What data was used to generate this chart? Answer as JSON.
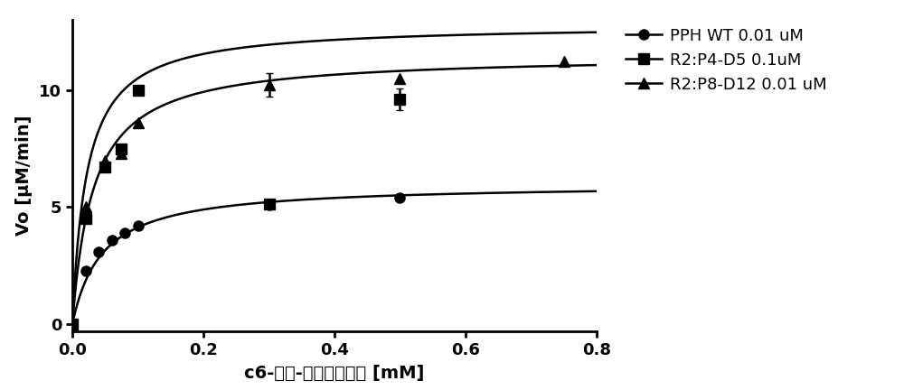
{
  "series": [
    {
      "label": "PPH WT 0.01 uM",
      "marker": "o",
      "x": [
        0.0,
        0.02,
        0.04,
        0.06,
        0.08,
        0.1,
        0.3,
        0.5
      ],
      "y": [
        0.0,
        2.3,
        3.1,
        3.6,
        3.9,
        4.2,
        5.1,
        5.4
      ],
      "yerr": [
        null,
        null,
        null,
        null,
        null,
        null,
        null,
        null
      ],
      "Vmax": 6.0,
      "Km": 0.045
    },
    {
      "label": "R2:P4-D5 0.1uM",
      "marker": "s",
      "x": [
        0.0,
        0.02,
        0.05,
        0.075,
        0.1,
        0.3,
        0.5
      ],
      "y": [
        0.0,
        4.5,
        6.7,
        7.5,
        10.0,
        5.15,
        9.6
      ],
      "yerr": [
        null,
        null,
        null,
        null,
        null,
        null,
        0.45
      ],
      "Vmax": 11.5,
      "Km": 0.032
    },
    {
      "label": "R2:P8-D12 0.01 uM",
      "marker": "^",
      "x": [
        0.0,
        0.02,
        0.05,
        0.075,
        0.1,
        0.3,
        0.5,
        0.75
      ],
      "y": [
        0.0,
        5.0,
        7.0,
        7.3,
        8.6,
        10.2,
        10.5,
        11.2
      ],
      "yerr": [
        null,
        null,
        null,
        null,
        null,
        0.5,
        null,
        null
      ],
      "Vmax": 12.8,
      "Km": 0.022
    }
  ],
  "xlabel": "c6-氧代-高丝氨酸内酯 [mM]",
  "ylabel": "Vo [μM/min]",
  "xlim": [
    0.0,
    0.8
  ],
  "ylim": [
    -0.3,
    13.0
  ],
  "xticks": [
    0.0,
    0.2,
    0.4,
    0.6,
    0.8
  ],
  "yticks": [
    0,
    5,
    10
  ],
  "color": "#000000",
  "linewidth": 1.8,
  "markersize": 8,
  "background_color": "#ffffff",
  "figwidth": 10.0,
  "figheight": 4.32
}
